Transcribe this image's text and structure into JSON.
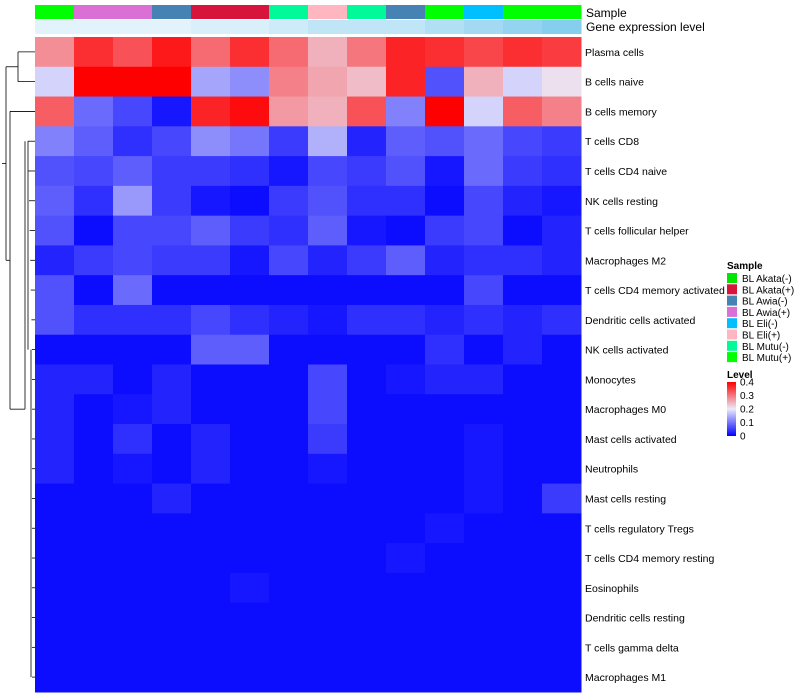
{
  "chart_data": {
    "type": "heatmap",
    "annotation_labels": [
      "Sample",
      "Gene expression level"
    ],
    "columns": [
      "BL Mutu(+)",
      "BL Awia(+)",
      "BL Awia(+)",
      "BL Awia(-)",
      "BL Akata(+)",
      "BL Akata(+)",
      "BL Mutu(-)",
      "BL Eli(+)",
      "BL Mutu(-)",
      "BL Awia(-)",
      "BL Mutu(+)",
      "BL Eli(-)",
      "BL Mutu(+)",
      "BL Mutu(+)"
    ],
    "expression_level": [
      0.05,
      0.05,
      0.05,
      0.05,
      0.12,
      0.12,
      0.2,
      0.3,
      0.3,
      0.3,
      0.4,
      0.5,
      0.6,
      0.7
    ],
    "rows": [
      "Plasma cells",
      "B cells naive",
      "B cells memory",
      "T cells CD8",
      "T cells CD4 naive",
      "NK cells resting",
      "T cells follicular helper",
      "Macrophages M2",
      "T cells CD4 memory activated",
      "Dendritic cells activated",
      "NK cells activated",
      "Monocytes",
      "Macrophages M0",
      "Mast cells activated",
      "Neutrophils",
      "Mast cells resting",
      "T cells regulatory  Tregs",
      "T cells CD4 memory resting",
      "Eosinophils",
      "Dendritic cells resting",
      "T cells gamma delta",
      "Macrophages M1"
    ],
    "values": [
      [
        0.28,
        0.36,
        0.33,
        0.38,
        0.31,
        0.36,
        0.31,
        0.25,
        0.3,
        0.37,
        0.36,
        0.34,
        0.36,
        0.35
      ],
      [
        0.18,
        0.4,
        0.4,
        0.4,
        0.14,
        0.12,
        0.29,
        0.26,
        0.24,
        0.37,
        0.07,
        0.25,
        0.18,
        0.21
      ],
      [
        0.32,
        0.09,
        0.06,
        0.02,
        0.37,
        0.39,
        0.27,
        0.25,
        0.33,
        0.11,
        0.4,
        0.18,
        0.32,
        0.29
      ],
      [
        0.11,
        0.08,
        0.04,
        0.06,
        0.12,
        0.1,
        0.05,
        0.15,
        0.03,
        0.08,
        0.07,
        0.09,
        0.06,
        0.05
      ],
      [
        0.07,
        0.06,
        0.08,
        0.05,
        0.05,
        0.04,
        0.02,
        0.06,
        0.05,
        0.07,
        0.02,
        0.09,
        0.05,
        0.04
      ],
      [
        0.08,
        0.04,
        0.13,
        0.05,
        0.02,
        0.01,
        0.05,
        0.07,
        0.04,
        0.04,
        0.01,
        0.06,
        0.03,
        0.02
      ],
      [
        0.07,
        0.01,
        0.06,
        0.06,
        0.08,
        0.05,
        0.04,
        0.08,
        0.02,
        0.01,
        0.05,
        0.06,
        0.01,
        0.03
      ],
      [
        0.03,
        0.05,
        0.06,
        0.05,
        0.05,
        0.02,
        0.06,
        0.03,
        0.05,
        0.08,
        0.03,
        0.04,
        0.04,
        0.03
      ],
      [
        0.07,
        0.01,
        0.09,
        0.01,
        0.01,
        0.01,
        0.01,
        0.01,
        0.01,
        0.01,
        0.01,
        0.06,
        0.01,
        0.01
      ],
      [
        0.07,
        0.04,
        0.04,
        0.04,
        0.06,
        0.04,
        0.03,
        0.02,
        0.04,
        0.04,
        0.03,
        0.04,
        0.03,
        0.04
      ],
      [
        0.01,
        0.01,
        0.01,
        0.01,
        0.08,
        0.08,
        0.01,
        0.01,
        0.01,
        0.01,
        0.04,
        0.01,
        0.03,
        0.01
      ],
      [
        0.03,
        0.03,
        0.01,
        0.03,
        0.01,
        0.01,
        0.01,
        0.06,
        0.01,
        0.02,
        0.03,
        0.03,
        0.01,
        0.01
      ],
      [
        0.03,
        0.01,
        0.02,
        0.03,
        0.01,
        0.01,
        0.01,
        0.06,
        0.01,
        0.01,
        0.01,
        0.01,
        0.01,
        0.01
      ],
      [
        0.03,
        0.01,
        0.04,
        0.01,
        0.03,
        0.01,
        0.01,
        0.05,
        0.01,
        0.01,
        0.01,
        0.02,
        0.01,
        0.01
      ],
      [
        0.03,
        0.01,
        0.02,
        0.01,
        0.03,
        0.01,
        0.01,
        0.02,
        0.01,
        0.01,
        0.01,
        0.02,
        0.01,
        0.01
      ],
      [
        0.01,
        0.01,
        0.01,
        0.03,
        0.01,
        0.01,
        0.01,
        0.01,
        0.01,
        0.01,
        0.01,
        0.02,
        0.01,
        0.05
      ],
      [
        0.01,
        0.01,
        0.01,
        0.01,
        0.01,
        0.01,
        0.01,
        0.01,
        0.01,
        0.01,
        0.02,
        0.01,
        0.01,
        0.01
      ],
      [
        0.01,
        0.01,
        0.01,
        0.01,
        0.01,
        0.01,
        0.01,
        0.01,
        0.01,
        0.02,
        0.01,
        0.01,
        0.01,
        0.01
      ],
      [
        0.01,
        0.01,
        0.01,
        0.01,
        0.01,
        0.02,
        0.01,
        0.01,
        0.01,
        0.01,
        0.01,
        0.01,
        0.01,
        0.01
      ],
      [
        0.01,
        0.01,
        0.01,
        0.01,
        0.01,
        0.01,
        0.01,
        0.01,
        0.01,
        0.01,
        0.01,
        0.01,
        0.01,
        0.01
      ],
      [
        0.01,
        0.01,
        0.01,
        0.01,
        0.01,
        0.01,
        0.01,
        0.01,
        0.01,
        0.01,
        0.01,
        0.01,
        0.01,
        0.01
      ],
      [
        0.01,
        0.01,
        0.01,
        0.01,
        0.01,
        0.01,
        0.01,
        0.01,
        0.01,
        0.01,
        0.01,
        0.01,
        0.01,
        0.01
      ]
    ],
    "color_scale": {
      "min": 0,
      "max": 0.4,
      "stops": [
        {
          "value": 0,
          "color": "#0000ff"
        },
        {
          "value": 0.2,
          "color": "#ebebfa"
        },
        {
          "value": 0.4,
          "color": "#ff0000"
        }
      ]
    },
    "expression_level_colors": {
      "low": "#eaf6fc",
      "high": "#5bbde8"
    },
    "legends": {
      "sample": {
        "title": "Sample",
        "entries": [
          {
            "label": "BL Akata(-)",
            "color": "#00e600"
          },
          {
            "label": "BL Akata(+)",
            "color": "#d7143c"
          },
          {
            "label": "BL Awia(-)",
            "color": "#4682b4"
          },
          {
            "label": "BL Awia(+)",
            "color": "#da70d6"
          },
          {
            "label": "BL Eli(-)",
            "color": "#00bfff"
          },
          {
            "label": "BL Eli(+)",
            "color": "#ffb6c1"
          },
          {
            "label": "BL Mutu(-)",
            "color": "#00fa9a"
          },
          {
            "label": "BL Mutu(+)",
            "color": "#00ff00"
          }
        ]
      },
      "level": {
        "title": "Level",
        "ticks": [
          "0.4",
          "0.3",
          "0.2",
          "0.1",
          "0"
        ],
        "tick_values": [
          0.4,
          0.3,
          0.2,
          0.1,
          0
        ]
      }
    },
    "dendrogram": {
      "leaf_order": [
        "Plasma cells",
        "B cells naive",
        "B cells memory",
        "T cells CD8",
        "T cells CD4 naive",
        "NK cells resting",
        "T cells follicular helper",
        "Macrophages M2",
        "T cells CD4 memory activated",
        "Dendritic cells activated",
        "NK cells activated",
        "Monocytes",
        "Macrophages M0",
        "Mast cells activated",
        "Neutrophils",
        "Mast cells resting",
        "T cells regulatory  Tregs",
        "T cells CD4 memory resting",
        "Eosinophils",
        "Dendritic cells resting",
        "T cells gamma delta",
        "Macrophages M1"
      ]
    }
  }
}
